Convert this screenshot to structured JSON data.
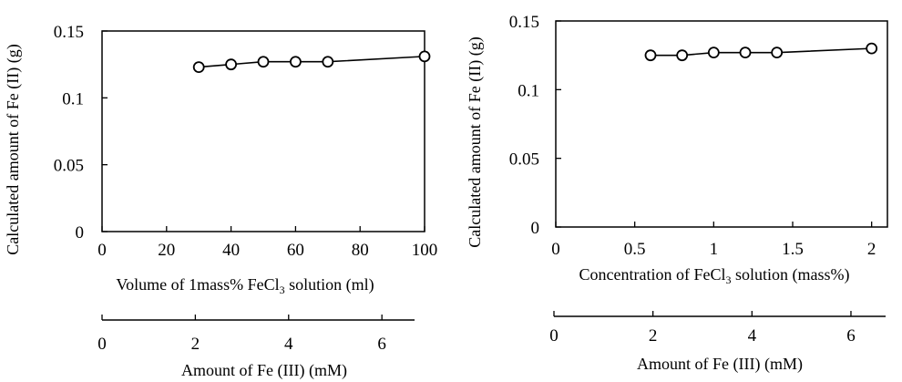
{
  "chart_data": [
    {
      "type": "line",
      "marker": "open-circle",
      "ylabel": "Calculated amount of Fe (II) (g)",
      "xlabel": "Volume of 1mass% FeCl3 solution (ml)",
      "xlabel_parts": [
        "Volume of 1mass% FeCl",
        "3",
        " solution (ml)"
      ],
      "xlim": [
        0,
        100
      ],
      "ylim": [
        0,
        0.15
      ],
      "xticks": [
        "0",
        "20",
        "40",
        "60",
        "80",
        "100"
      ],
      "yticks": [
        "0",
        "0.05",
        "0.1",
        "0.15"
      ],
      "series": [
        {
          "x": [
            30,
            40,
            50,
            60,
            70,
            100
          ],
          "y": [
            0.123,
            0.125,
            0.127,
            0.127,
            0.127,
            0.131
          ]
        }
      ],
      "secondary_axis": {
        "label": "Amount of Fe (III) (mM)",
        "ticks": [
          "0",
          "2",
          "4",
          "6"
        ],
        "lim": [
          0,
          6.7
        ]
      }
    },
    {
      "type": "line",
      "marker": "open-circle",
      "ylabel": "Calculated amount of Fe (II) (g)",
      "xlabel": "Concentration of FeCl3 solution (mass%)",
      "xlabel_parts": [
        "Concentration of FeCl",
        "3",
        " solution (mass%)"
      ],
      "xlim": [
        0,
        2.1
      ],
      "ylim": [
        0,
        0.15
      ],
      "xticks": [
        "0",
        "0.5",
        "1",
        "1.5",
        "2"
      ],
      "yticks": [
        "0",
        "0.05",
        "0.1",
        "0.15"
      ],
      "series": [
        {
          "x": [
            0.6,
            0.8,
            1.0,
            1.2,
            1.4,
            2.0
          ],
          "y": [
            0.125,
            0.125,
            0.127,
            0.127,
            0.127,
            0.13
          ]
        }
      ],
      "secondary_axis": {
        "label": "Amount of Fe (III) (mM)",
        "ticks": [
          "0",
          "2",
          "4",
          "6"
        ],
        "lim": [
          0,
          6.7
        ]
      }
    }
  ]
}
